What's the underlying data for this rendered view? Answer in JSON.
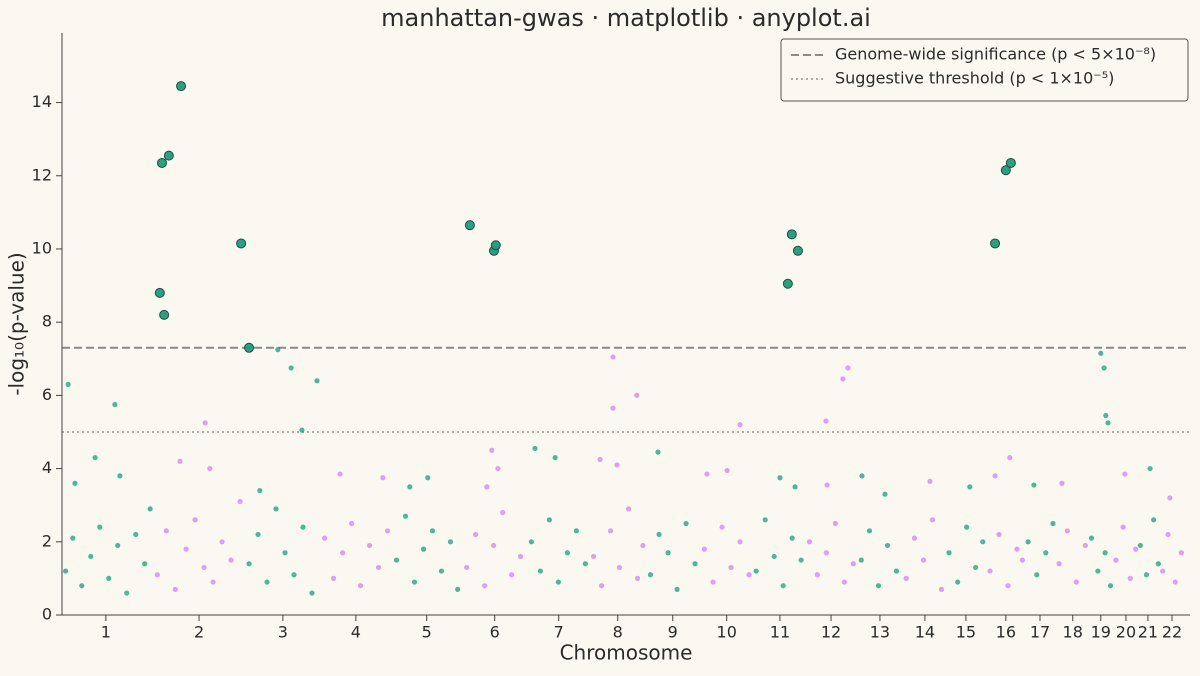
{
  "chart_data": {
    "type": "scatter",
    "title": "manhattan-gwas · matplotlib · anyplot.ai",
    "x_label": "Chromosome",
    "y_label": "-log₁₀(p-value)",
    "xlim": [
      0,
      3136
    ],
    "ylim": [
      0,
      15.9
    ],
    "xticks": [
      {
        "value": 122,
        "label": "1"
      },
      {
        "value": 381,
        "label": "2"
      },
      {
        "value": 614,
        "label": "3"
      },
      {
        "value": 817,
        "label": "4"
      },
      {
        "value": 1014,
        "label": "5"
      },
      {
        "value": 1203,
        "label": "6"
      },
      {
        "value": 1381,
        "label": "7"
      },
      {
        "value": 1545,
        "label": "8"
      },
      {
        "value": 1698,
        "label": "9"
      },
      {
        "value": 1848,
        "label": "10"
      },
      {
        "value": 1996,
        "label": "11"
      },
      {
        "value": 2138,
        "label": "12"
      },
      {
        "value": 2274,
        "label": "13"
      },
      {
        "value": 2399,
        "label": "14"
      },
      {
        "value": 2513,
        "label": "15"
      },
      {
        "value": 2624,
        "label": "16"
      },
      {
        "value": 2719,
        "label": "17"
      },
      {
        "value": 2810,
        "label": "18"
      },
      {
        "value": 2888,
        "label": "19"
      },
      {
        "value": 2958,
        "label": "20"
      },
      {
        "value": 3019,
        "label": "21"
      },
      {
        "value": 3086,
        "label": "22"
      }
    ],
    "yticks": [
      0,
      2,
      4,
      6,
      8,
      10,
      12,
      14
    ],
    "legend_position": "upper right",
    "hlines": [
      {
        "value": 7.3,
        "label": "Genome-wide significance (p < 5×10⁻⁸)",
        "style": "dashed",
        "color": "#8a8a8a"
      },
      {
        "value": 5,
        "label": "Suggestive threshold (p < 1×10⁻⁵)",
        "style": "dotted",
        "color": "#b0aca4"
      }
    ],
    "series": [
      {
        "color": "#009E73",
        "x": [
          17,
          147,
          92,
          161,
          36,
          10,
          30,
          55,
          80,
          105,
          130,
          155,
          180,
          205,
          230,
          245
        ],
        "values": [
          6.3,
          5.75,
          4.3,
          3.8,
          3.6,
          1.2,
          2.1,
          0.8,
          1.6,
          2.4,
          1.0,
          1.9,
          0.6,
          2.2,
          1.4,
          2.9
        ]
      },
      {
        "color": "#C77CFF",
        "x": [
          398,
          328,
          411,
          265,
          290,
          315,
          345,
          370,
          395,
          420,
          445,
          470,
          495
        ],
        "values": [
          5.25,
          4.2,
          4.0,
          1.1,
          2.3,
          0.7,
          1.8,
          2.6,
          1.3,
          0.9,
          2.0,
          1.5,
          3.1
        ]
      },
      {
        "color": "#009E73",
        "x": [
          600,
          637,
          709,
          667,
          550,
          520,
          545,
          570,
          595,
          620,
          645,
          670,
          695
        ],
        "values": [
          7.25,
          6.75,
          6.4,
          5.05,
          3.4,
          1.4,
          2.2,
          0.9,
          2.9,
          1.7,
          1.1,
          2.4,
          0.6
        ]
      },
      {
        "color": "#C77CFF",
        "x": [
          773,
          892,
          730,
          755,
          780,
          805,
          830,
          855,
          880,
          905
        ],
        "values": [
          3.85,
          3.75,
          2.1,
          1.0,
          1.7,
          2.5,
          0.8,
          1.9,
          1.3,
          2.3
        ]
      },
      {
        "color": "#009E73",
        "x": [
          1017,
          967,
          930,
          955,
          980,
          1005,
          1030,
          1055,
          1080,
          1100
        ],
        "values": [
          3.75,
          3.5,
          1.5,
          2.7,
          0.9,
          1.8,
          2.3,
          1.2,
          2.0,
          0.7
        ]
      },
      {
        "color": "#C77CFF",
        "x": [
          1195,
          1212,
          1181,
          1125,
          1150,
          1175,
          1200,
          1225,
          1250,
          1275
        ],
        "values": [
          4.5,
          4.0,
          3.5,
          1.3,
          2.2,
          0.8,
          1.9,
          2.8,
          1.1,
          1.6
        ]
      },
      {
        "color": "#009E73",
        "x": [
          1315,
          1371,
          1305,
          1330,
          1355,
          1380,
          1405,
          1430,
          1455
        ],
        "values": [
          4.55,
          4.3,
          2.0,
          1.2,
          2.6,
          0.9,
          1.7,
          2.3,
          1.4
        ]
      },
      {
        "color": "#C77CFF",
        "x": [
          1532,
          1532,
          1598,
          1543,
          1496,
          1478,
          1500,
          1525,
          1550,
          1575,
          1600,
          1615
        ],
        "values": [
          7.05,
          5.65,
          6.0,
          4.1,
          4.25,
          1.6,
          0.8,
          2.3,
          1.3,
          2.9,
          1.0,
          1.9
        ]
      },
      {
        "color": "#009E73",
        "x": [
          1657,
          1636,
          1660,
          1685,
          1710,
          1735,
          1760
        ],
        "values": [
          4.45,
          1.1,
          2.2,
          1.7,
          0.7,
          2.5,
          1.4
        ]
      },
      {
        "color": "#C77CFF",
        "x": [
          1885,
          1849,
          1793,
          1786,
          1810,
          1835,
          1860,
          1885,
          1910
        ],
        "values": [
          5.2,
          3.95,
          3.85,
          1.8,
          0.9,
          2.4,
          1.3,
          2.0,
          1.1
        ]
      },
      {
        "color": "#009E73",
        "x": [
          1996,
          2038,
          1930,
          1955,
          1980,
          2005,
          2030,
          2055
        ],
        "values": [
          3.75,
          3.5,
          1.2,
          2.6,
          1.6,
          0.8,
          2.1,
          1.5
        ]
      },
      {
        "color": "#C77CFF",
        "x": [
          2185,
          2171,
          2124,
          2127,
          2078,
          2100,
          2125,
          2150,
          2175,
          2200
        ],
        "values": [
          6.75,
          6.45,
          5.3,
          3.55,
          2.0,
          1.1,
          1.7,
          2.5,
          0.9,
          1.4
        ]
      },
      {
        "color": "#009E73",
        "x": [
          2224,
          2288,
          2222,
          2245,
          2270,
          2295,
          2320
        ],
        "values": [
          3.8,
          3.3,
          1.5,
          2.3,
          0.8,
          1.9,
          1.2
        ]
      },
      {
        "color": "#C77CFF",
        "x": [
          2413,
          2347,
          2370,
          2395,
          2420,
          2445
        ],
        "values": [
          3.65,
          1.0,
          2.1,
          1.5,
          2.6,
          0.7
        ]
      },
      {
        "color": "#009E73",
        "x": [
          2524,
          2466,
          2490,
          2515,
          2540,
          2560
        ],
        "values": [
          3.5,
          1.7,
          0.9,
          2.4,
          1.3,
          2.0
        ]
      },
      {
        "color": "#C77CFF",
        "x": [
          2635,
          2594,
          2580,
          2605,
          2630,
          2655,
          2670
        ],
        "values": [
          4.3,
          3.8,
          1.2,
          2.2,
          0.8,
          1.8,
          1.5
        ]
      },
      {
        "color": "#009E73",
        "x": [
          2702,
          2686,
          2710,
          2735,
          2755
        ],
        "values": [
          3.55,
          2.0,
          1.1,
          1.7,
          2.5
        ]
      },
      {
        "color": "#C77CFF",
        "x": [
          2780,
          2772,
          2795,
          2820,
          2845
        ],
        "values": [
          3.6,
          1.4,
          2.3,
          0.9,
          1.9
        ]
      },
      {
        "color": "#009E73",
        "x": [
          2888,
          2897,
          2902,
          2908,
          2862,
          2880,
          2900,
          2915
        ],
        "values": [
          7.15,
          6.75,
          5.45,
          5.25,
          2.1,
          1.2,
          1.7,
          0.8
        ]
      },
      {
        "color": "#C77CFF",
        "x": [
          2955,
          2930,
          2950,
          2970,
          2985
        ],
        "values": [
          3.85,
          1.5,
          2.4,
          1.0,
          1.8
        ]
      },
      {
        "color": "#009E73",
        "x": [
          3025,
          2998,
          3015,
          3035,
          3048
        ],
        "values": [
          4.0,
          1.9,
          1.1,
          2.6,
          1.4
        ]
      },
      {
        "color": "#C77CFF",
        "x": [
          3080,
          3060,
          3075,
          3095,
          3112
        ],
        "values": [
          3.2,
          1.2,
          2.2,
          0.9,
          1.7
        ]
      },
      {
        "color": "#1a9e77",
        "edge_color": "#1f4d3f",
        "marker_size": 6,
        "x": [
          278,
          297,
          331,
          272,
          284,
          498,
          520,
          1134,
          1201,
          1206,
          2018,
          2029,
          2046,
          2594,
          2624,
          2638
        ],
        "values": [
          12.35,
          12.55,
          14.45,
          8.8,
          8.2,
          10.15,
          7.3,
          10.65,
          9.95,
          10.1,
          9.05,
          10.4,
          9.95,
          10.15,
          12.15,
          12.35
        ]
      }
    ]
  }
}
